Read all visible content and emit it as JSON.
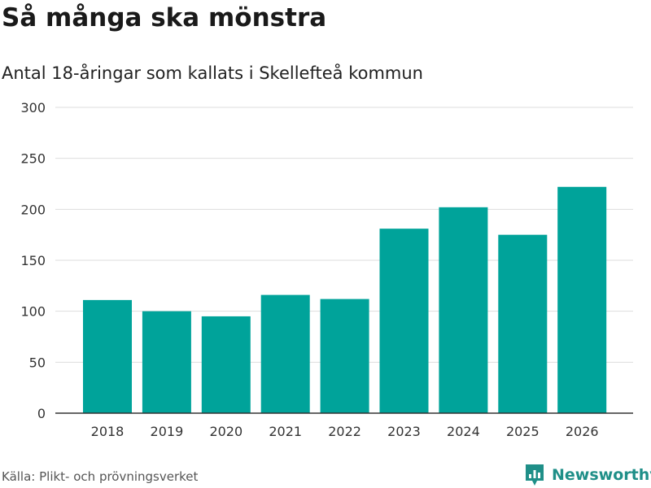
{
  "title": "Så många ska mönstra",
  "subtitle": "Antal 18-åringar som kallats i Skellefteå kommun",
  "source": "Källa: Plikt- och prövningsverket",
  "brand": {
    "name": "Newsworthy",
    "icon": "newsworthy-logo-icon",
    "color": "#1f8f88"
  },
  "colors": {
    "bar": "#00a39a",
    "grid": "#dddddd",
    "axis": "#333333"
  },
  "chart_data": {
    "type": "bar",
    "title": "Så många ska mönstra",
    "subtitle": "Antal 18-åringar som kallats i Skellefteå kommun",
    "xlabel": "",
    "ylabel": "",
    "categories": [
      "2018",
      "2019",
      "2020",
      "2021",
      "2022",
      "2023",
      "2024",
      "2025",
      "2026"
    ],
    "values": [
      111,
      100,
      95,
      116,
      112,
      181,
      202,
      175,
      222
    ],
    "ylim": [
      0,
      300
    ],
    "yticks": [
      0,
      50,
      100,
      150,
      200,
      250,
      300
    ],
    "grid": true
  }
}
